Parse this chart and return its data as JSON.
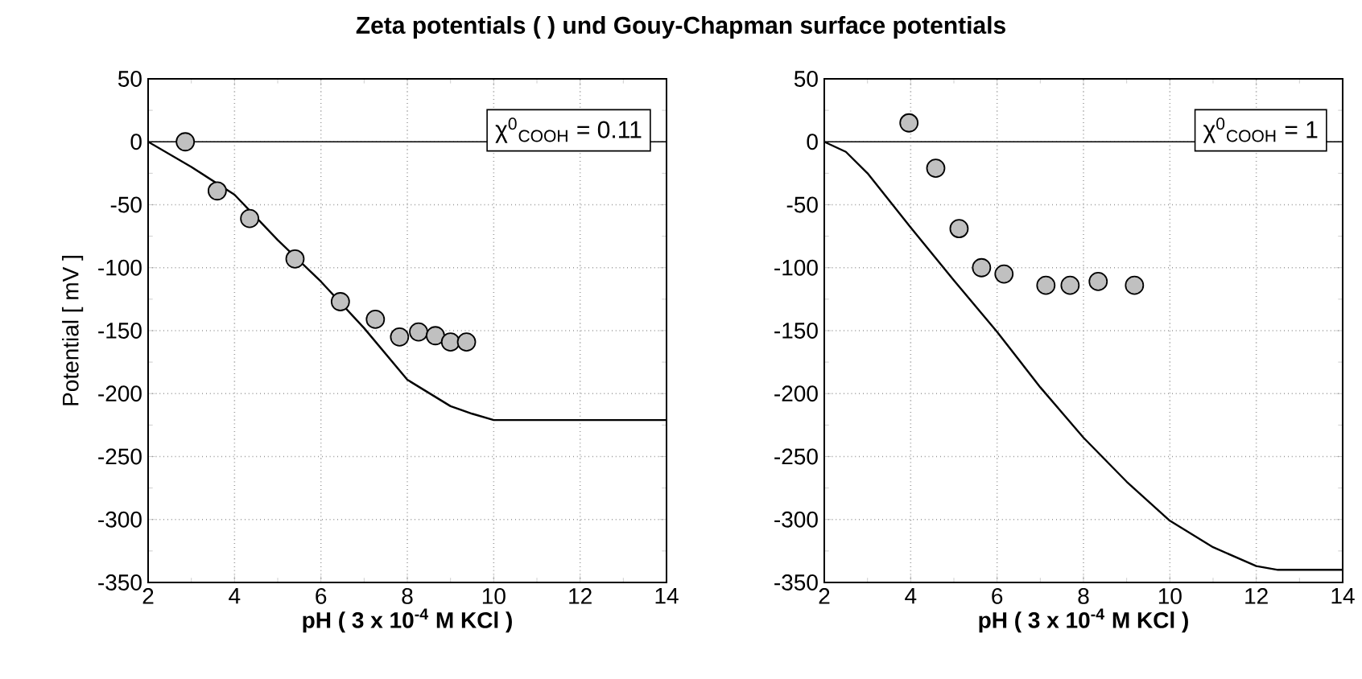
{
  "chart_data": [
    {
      "type": "scatter",
      "title": "Zeta potentials ( ) und Gouy-Chapman surface potentials",
      "xlabel": "pH ( 3 x 10$^{-4}$ M KCl )",
      "ylabel": "Potential [ mV ]",
      "annotations": [
        "χ$^{0}$$_{COOH}$ = 0.11"
      ],
      "xlim": [
        2,
        14
      ],
      "ylim": [
        -350,
        50
      ],
      "xticks": [
        2,
        4,
        6,
        8,
        10,
        12,
        14
      ],
      "yticks": [
        -350,
        -300,
        -250,
        -200,
        -150,
        -100,
        -50,
        0,
        50
      ],
      "grid": true,
      "ref_lines": [
        {
          "axis": "y",
          "value": 0,
          "color": "#000000",
          "line_style": "solid"
        }
      ],
      "series": [
        {
          "type": "line",
          "color": "#000000",
          "marker": "none",
          "x": [
            2,
            3,
            4,
            5,
            6,
            7,
            8,
            9,
            9.5,
            10,
            10.5,
            14
          ],
          "values": [
            0,
            -20,
            -42,
            -78,
            -111,
            -148,
            -189,
            -210,
            -216,
            -221,
            -221,
            -221
          ]
        },
        {
          "color": "#c0c0c0",
          "marker": "circle",
          "x": [
            2.86,
            3.6,
            4.35,
            5.4,
            6.45,
            7.26,
            7.82,
            8.26,
            8.65,
            9.0,
            9.37
          ],
          "values": [
            0,
            -39,
            -61,
            -93,
            -127,
            -141,
            -155,
            -151,
            -154,
            -159,
            -159
          ]
        }
      ]
    },
    {
      "type": "scatter",
      "xlabel": "pH ( 3 x 10$^{-4}$ M KCl )",
      "annotations": [
        "χ$^{0}$$_{COOH}$ = 1"
      ],
      "xlim": [
        2,
        14
      ],
      "ylim": [
        -350,
        50
      ],
      "xticks": [
        2,
        4,
        6,
        8,
        10,
        12,
        14
      ],
      "yticks": [
        -350,
        -300,
        -250,
        -200,
        -150,
        -100,
        -50,
        0,
        50
      ],
      "grid": true,
      "ref_lines": [
        {
          "axis": "y",
          "value": 0,
          "color": "#000000",
          "line_style": "solid"
        }
      ],
      "series": [
        {
          "type": "line",
          "color": "#000000",
          "marker": "none",
          "x": [
            2,
            2.5,
            3,
            4,
            5,
            6,
            7,
            8,
            9,
            10,
            11,
            12,
            12.5,
            14
          ],
          "values": [
            0,
            -8,
            -25,
            -68,
            -110,
            -151,
            -195,
            -235,
            -270,
            -301,
            -322,
            -337,
            -340,
            -340
          ]
        },
        {
          "color": "#c0c0c0",
          "marker": "circle",
          "x": [
            3.96,
            4.58,
            5.12,
            5.64,
            6.16,
            7.13,
            7.69,
            8.34,
            9.18
          ],
          "values": [
            15,
            -21,
            -69,
            -100,
            -105,
            -114,
            -114,
            -111,
            -114
          ]
        }
      ]
    }
  ]
}
